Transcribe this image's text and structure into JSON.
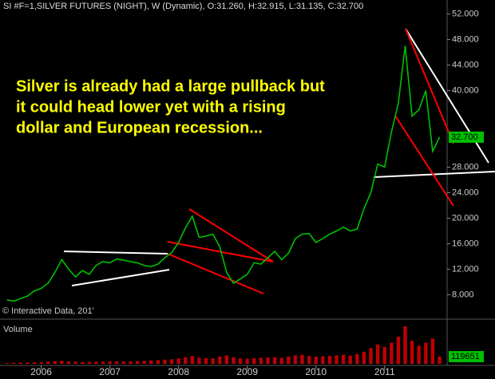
{
  "chart_data": [
    {
      "type": "line",
      "title": "SI #F=1,SILVER FUTURES (NIGHT), W (Dynamic), O:31.260, H:32.915, L:31.135, C:32.700",
      "annotation": [
        "Silver is already had a large pullback but",
        "it could head lower yet with a rising",
        "dollar and European recession..."
      ],
      "credit": "© Interactive Data, 201'",
      "last_label": "32.700",
      "x": [
        2005.5,
        2005.6,
        2005.7,
        2005.8,
        2005.9,
        2006.0,
        2006.1,
        2006.2,
        2006.3,
        2006.4,
        2006.5,
        2006.6,
        2006.7,
        2006.8,
        2006.9,
        2007.0,
        2007.1,
        2007.2,
        2007.3,
        2007.4,
        2007.5,
        2007.6,
        2007.7,
        2007.8,
        2007.9,
        2008.0,
        2008.1,
        2008.2,
        2008.3,
        2008.4,
        2008.5,
        2008.6,
        2008.7,
        2008.8,
        2008.9,
        2009.0,
        2009.1,
        2009.2,
        2009.3,
        2009.4,
        2009.5,
        2009.6,
        2009.7,
        2009.8,
        2009.9,
        2010.0,
        2010.1,
        2010.2,
        2010.3,
        2010.4,
        2010.5,
        2010.6,
        2010.7,
        2010.8,
        2010.9,
        2011.0,
        2011.1,
        2011.2,
        2011.3,
        2011.4,
        2011.5,
        2011.6,
        2011.7,
        2011.8
      ],
      "series": [
        {
          "color": "#00c000",
          "values": [
            7.2,
            7.0,
            7.4,
            7.8,
            8.6,
            9.0,
            9.8,
            11.5,
            13.5,
            12.0,
            10.8,
            11.8,
            11.2,
            12.6,
            13.2,
            13.0,
            13.6,
            13.4,
            13.2,
            13.0,
            12.6,
            12.4,
            12.8,
            13.8,
            14.6,
            16.2,
            18.5,
            20.3,
            17.0,
            17.2,
            17.5,
            15.5,
            11.5,
            9.8,
            10.5,
            11.2,
            13.0,
            12.8,
            13.8,
            14.8,
            13.5,
            14.5,
            16.8,
            17.5,
            17.6,
            16.2,
            16.8,
            17.5,
            18.0,
            18.6,
            18.0,
            18.3,
            21.5,
            24.0,
            28.5,
            28.0,
            33.5,
            38.0,
            47.0,
            36.0,
            37.0,
            40.0,
            30.5,
            32.7
          ]
        }
      ],
      "xlim": [
        2005.4,
        2011.91
      ],
      "xticks": [
        2006,
        2007,
        2008,
        2009,
        2010,
        2011
      ],
      "ylim": [
        4.8,
        54.2
      ],
      "yticks": [
        {
          "value": 8,
          "label": "8.000"
        },
        {
          "value": 12,
          "label": "12.000"
        },
        {
          "value": 16,
          "label": "16.000"
        },
        {
          "value": 20,
          "label": "20.000"
        },
        {
          "value": 24,
          "label": "24.000"
        },
        {
          "value": 28,
          "label": "28.000"
        },
        {
          "value": 40,
          "label": "40.000"
        },
        {
          "value": 44,
          "label": "44.000"
        },
        {
          "value": 48,
          "label": "48.000"
        },
        {
          "value": 52,
          "label": "52.000"
        }
      ]
    },
    {
      "type": "bar",
      "title": "Volume",
      "last_label": "119651",
      "color": "#c00000",
      "x": [
        2005.5,
        2005.6,
        2005.7,
        2005.8,
        2005.9,
        2006.0,
        2006.1,
        2006.2,
        2006.3,
        2006.4,
        2006.5,
        2006.6,
        2006.7,
        2006.8,
        2006.9,
        2007.0,
        2007.1,
        2007.2,
        2007.3,
        2007.4,
        2007.5,
        2007.6,
        2007.7,
        2007.8,
        2007.9,
        2008.0,
        2008.1,
        2008.2,
        2008.3,
        2008.4,
        2008.5,
        2008.6,
        2008.7,
        2008.8,
        2008.9,
        2009.0,
        2009.1,
        2009.2,
        2009.3,
        2009.4,
        2009.5,
        2009.6,
        2009.7,
        2009.8,
        2009.9,
        2010.0,
        2010.1,
        2010.2,
        2010.3,
        2010.4,
        2010.5,
        2010.6,
        2010.7,
        2010.8,
        2010.9,
        2011.0,
        2011.1,
        2011.2,
        2011.3,
        2011.4,
        2011.5,
        2011.6,
        2011.7,
        2011.8
      ],
      "values": [
        15000,
        18000,
        20000,
        22000,
        25000,
        30000,
        35000,
        45000,
        50000,
        40000,
        35000,
        30000,
        32000,
        35000,
        38000,
        40000,
        42000,
        40000,
        38000,
        45000,
        50000,
        55000,
        60000,
        70000,
        75000,
        90000,
        110000,
        130000,
        100000,
        95000,
        90000,
        120000,
        140000,
        110000,
        90000,
        85000,
        95000,
        100000,
        105000,
        110000,
        100000,
        120000,
        140000,
        150000,
        130000,
        120000,
        125000,
        130000,
        140000,
        150000,
        135000,
        160000,
        200000,
        260000,
        320000,
        280000,
        350000,
        450000,
        620000,
        380000,
        300000,
        350000,
        420000,
        119651
      ],
      "xlim": [
        2005.4,
        2011.91
      ],
      "ylim": [
        0,
        700000
      ]
    }
  ]
}
